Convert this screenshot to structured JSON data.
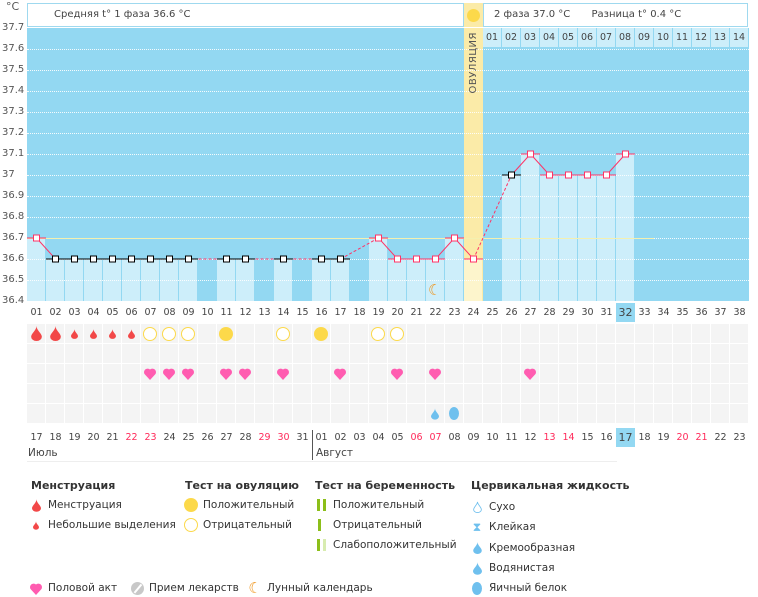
{
  "axis": {
    "unit": "°C",
    "ticks": [
      "37.7",
      "37.6",
      "37.5",
      "37.4",
      "37.3",
      "37.2",
      "37.1",
      "37",
      "36.9",
      "36.8",
      "36.7",
      "36.6",
      "36.5",
      "36.4"
    ]
  },
  "header": {
    "phase1": "Средняя t° 1 фаза 36.6 °C",
    "phase2": "2 фаза 37.0 °C",
    "diff": "Разница t° 0.4 °C",
    "ovulation_label": "ОВУЛЯЦИЯ"
  },
  "chart_data": {
    "type": "line",
    "ylim": [
      36.4,
      37.7
    ],
    "cycle_days": [
      "01",
      "02",
      "03",
      "04",
      "05",
      "06",
      "07",
      "08",
      "09",
      "10",
      "11",
      "12",
      "13",
      "14",
      "15",
      "16",
      "17",
      "18",
      "19",
      "20",
      "21",
      "22",
      "23",
      "24",
      "25",
      "26",
      "27",
      "28",
      "29",
      "30",
      "31",
      "32",
      "33",
      "34",
      "35",
      "36",
      "37",
      "38"
    ],
    "temperatures": [
      36.7,
      36.6,
      36.6,
      36.6,
      36.6,
      36.6,
      36.6,
      36.6,
      36.6,
      null,
      36.6,
      36.6,
      null,
      36.6,
      null,
      36.6,
      36.6,
      null,
      36.7,
      36.6,
      36.6,
      36.6,
      36.7,
      36.6,
      null,
      37.0,
      37.1,
      37.0,
      37.0,
      37.0,
      37.0,
      37.1,
      null,
      null,
      null,
      null,
      null,
      null
    ],
    "coverline": 36.7,
    "ovulation_day": 24,
    "current_day": 32,
    "post_ovulation_days": [
      "01",
      "02",
      "03",
      "04",
      "05",
      "06",
      "07",
      "08",
      "09",
      "10",
      "11",
      "12",
      "13",
      "14"
    ],
    "dates": [
      "17",
      "18",
      "19",
      "20",
      "21",
      "22",
      "23",
      "24",
      "25",
      "26",
      "27",
      "28",
      "29",
      "30",
      "31",
      "01",
      "02",
      "03",
      "04",
      "05",
      "06",
      "07",
      "08",
      "09",
      "10",
      "11",
      "12",
      "13",
      "14",
      "15",
      "16",
      "17",
      "18",
      "19",
      "20",
      "21",
      "22",
      "23"
    ],
    "weekend_dates_idx": [
      5,
      6,
      12,
      13,
      20,
      21,
      27,
      28,
      34,
      35
    ],
    "months": [
      "Июль",
      "Август"
    ],
    "menstruation": {
      "heavy": [
        1,
        2
      ],
      "light": [
        3,
        4,
        5,
        6
      ]
    },
    "ovulation_test": {
      "positive": [
        11,
        16
      ],
      "negative": [
        7,
        8,
        9,
        14,
        19,
        20
      ]
    },
    "intercourse": [
      7,
      8,
      9,
      11,
      12,
      14,
      17,
      20,
      22,
      27
    ],
    "cervical": {
      "creamy": [
        22
      ],
      "egg_white": [
        23
      ]
    },
    "lunar": [
      22
    ]
  },
  "legend": {
    "menstruation": {
      "title": "Менструация",
      "items": [
        "Менструация",
        "Небольшие выделения"
      ]
    },
    "ovulation_test": {
      "title": "Тест на овуляцию",
      "items": [
        "Положительный",
        "Отрицательный"
      ]
    },
    "pregnancy_test": {
      "title": "Тест на беременность",
      "items": [
        "Положительный",
        "Отрицательный",
        "Слабоположительный"
      ]
    },
    "cervical": {
      "title": "Цервикальная жидкость",
      "items": [
        "Сухо",
        "Клейкая",
        "Кремообразная",
        "Водянистая",
        "Яичный белок"
      ]
    },
    "other": [
      "Половой акт",
      "Прием лекарств",
      "Лунный календарь"
    ]
  },
  "colors": {
    "plot_bg": "#93d8f2",
    "bar": "#cdeefa",
    "line": "#ff3366",
    "ovulation": "#fbeba8",
    "blood": "#f24848",
    "heart": "#ff5cb0",
    "test_yellow": "#fcd94a",
    "cervical": "#6fc0ee",
    "highlight": "#93d8f2"
  }
}
